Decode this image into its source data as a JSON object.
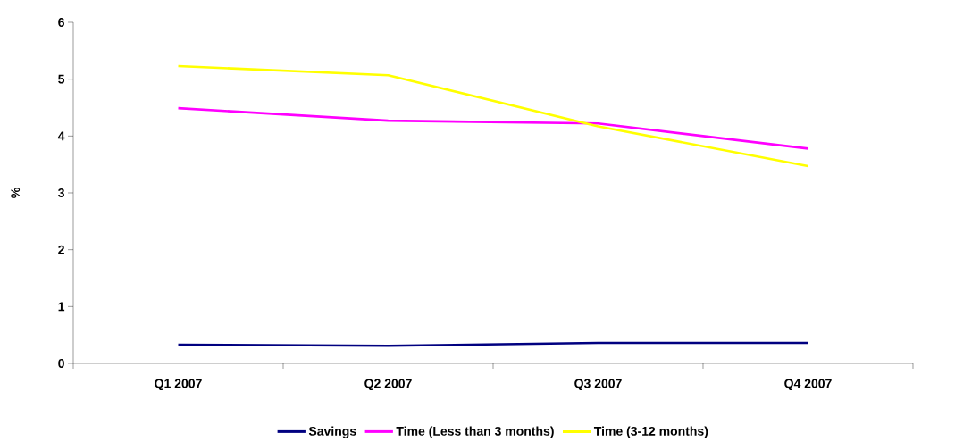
{
  "chart_data": {
    "type": "line",
    "categories": [
      "Q1 2007",
      "Q2 2007",
      "Q3 2007",
      "Q4 2007"
    ],
    "series": [
      {
        "name": "Savings",
        "color": "#000080",
        "values": [
          0.33,
          0.31,
          0.36,
          0.36
        ]
      },
      {
        "name": "Time (Less than 3 months)",
        "color": "#ff00ff",
        "values": [
          4.49,
          4.27,
          4.22,
          3.78
        ]
      },
      {
        "name": "Time (3-12 months)",
        "color": "#ffff00",
        "values": [
          5.23,
          5.07,
          4.17,
          3.47
        ]
      }
    ],
    "ylabel": "%",
    "ylim": [
      0,
      6
    ],
    "yticks": [
      0,
      1,
      2,
      3,
      4,
      5,
      6
    ],
    "legend": "bottom",
    "grid": false,
    "marker": "none",
    "line_style": "solid"
  }
}
